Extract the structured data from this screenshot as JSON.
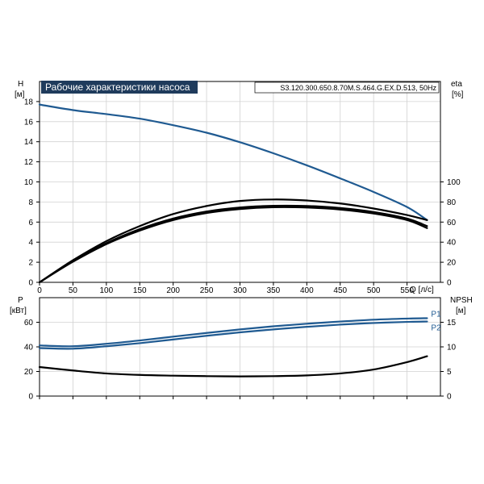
{
  "chart_data": {
    "type": "line",
    "title": "Рабочие характеристики насоса",
    "model": "S3.120.300.650.8.70M.S.464.G.EX.D.513, 50Hz",
    "colors": {
      "blue": "#1f5a91",
      "black": "#000000",
      "grid": "#d2d2d2",
      "title_bg": "#1f3b5c",
      "title_fg": "#ffffff"
    },
    "x_axis": {
      "label": "Q [л/с]",
      "range": [
        0,
        600
      ],
      "ticks": [
        "0",
        "50",
        "100",
        "150",
        "200",
        "250",
        "300",
        "350",
        "400",
        "450",
        "500",
        "550"
      ]
    },
    "top_panel": {
      "y_left": {
        "label": "H",
        "unit": "[м]",
        "range": [
          0,
          20
        ],
        "ticks": [
          "0",
          "2",
          "4",
          "6",
          "8",
          "10",
          "12",
          "14",
          "16",
          "18"
        ]
      },
      "y_right": {
        "label": "eta",
        "unit": "[%]",
        "range": [
          0,
          200
        ],
        "ticks": [
          "0",
          "20",
          "40",
          "60",
          "80",
          "100"
        ]
      },
      "series": [
        {
          "axis": "left",
          "color": "#1f5a91",
          "x": [
            0,
            50,
            100,
            150,
            200,
            250,
            300,
            350,
            400,
            450,
            500,
            550,
            580
          ],
          "y": [
            17.7,
            17.15,
            16.75,
            16.3,
            15.65,
            14.9,
            13.95,
            12.85,
            11.65,
            10.35,
            9.0,
            7.5,
            6.2
          ]
        },
        {
          "axis": "right",
          "color": "#000000",
          "x": [
            0,
            50,
            100,
            150,
            200,
            250,
            300,
            350,
            400,
            450,
            500,
            550,
            580
          ],
          "y": [
            0,
            22,
            41,
            56,
            68,
            76,
            81,
            82.5,
            81.5,
            78.5,
            73.5,
            67,
            62
          ]
        },
        {
          "axis": "right",
          "color": "#000000",
          "x": [
            0,
            50,
            100,
            150,
            200,
            250,
            300,
            350,
            400,
            450,
            500,
            550,
            580
          ],
          "y": [
            0,
            21,
            39,
            53,
            63.5,
            70.5,
            74.5,
            76.2,
            76,
            74,
            70,
            63.5,
            56
          ]
        },
        {
          "axis": "right",
          "color": "#000000",
          "x": [
            0,
            50,
            100,
            150,
            200,
            250,
            300,
            350,
            400,
            450,
            500,
            550,
            580
          ],
          "y": [
            0,
            20.5,
            38,
            51.5,
            62,
            69,
            73,
            74.8,
            74.5,
            72.5,
            68.5,
            62,
            54
          ]
        }
      ]
    },
    "bottom_panel": {
      "y_left": {
        "label": "P",
        "unit": "[кВт]",
        "range": [
          0,
          80
        ],
        "ticks": [
          "0",
          "20",
          "40",
          "60"
        ]
      },
      "y_right": {
        "label": "NPSH",
        "unit": "[м]",
        "range": [
          0,
          20
        ],
        "ticks": [
          "0",
          "5",
          "10",
          "15"
        ]
      },
      "series": [
        {
          "name": "P1",
          "axis": "left",
          "color": "#1f5a91",
          "x": [
            0,
            50,
            100,
            150,
            200,
            250,
            300,
            350,
            400,
            450,
            500,
            550,
            580
          ],
          "y": [
            41.2,
            40.5,
            42.5,
            45.2,
            48.3,
            51.3,
            54.2,
            56.7,
            58.8,
            60.6,
            62.1,
            63.0,
            63.3
          ]
        },
        {
          "name": "P2",
          "axis": "left",
          "color": "#1f5a91",
          "x": [
            0,
            50,
            100,
            150,
            200,
            250,
            300,
            350,
            400,
            450,
            500,
            550,
            580
          ],
          "y": [
            39.0,
            38.5,
            40.5,
            43.0,
            46.0,
            49.0,
            51.8,
            54.2,
            56.3,
            58.1,
            59.4,
            60.3,
            60.6
          ]
        },
        {
          "axis": "right",
          "color": "#000000",
          "x": [
            0,
            50,
            100,
            150,
            200,
            250,
            300,
            350,
            400,
            450,
            500,
            550,
            580
          ],
          "y": [
            5.9,
            5.2,
            4.6,
            4.3,
            4.15,
            4.05,
            4.0,
            4.05,
            4.2,
            4.6,
            5.4,
            6.9,
            8.1
          ]
        }
      ]
    }
  }
}
